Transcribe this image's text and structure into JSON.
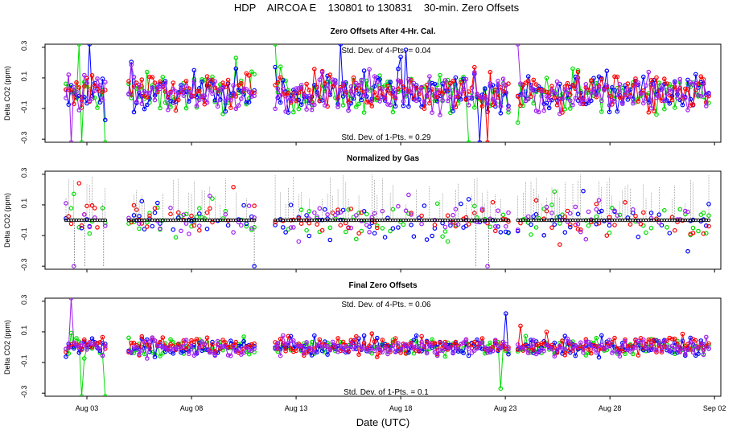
{
  "page_title": "HDP    AIRCOA E    130801 to 130831    30-min. Zero Offsets",
  "colors": {
    "series": [
      "#00dd00",
      "#0000ff",
      "#ff0000",
      "#a020f0"
    ],
    "normalized_marker": "#000000",
    "frame": "#000000"
  },
  "x_axis": {
    "label": "Date (UTC)",
    "ticks": [
      {
        "day": 3,
        "label": "Aug 03"
      },
      {
        "day": 8,
        "label": "Aug 08"
      },
      {
        "day": 13,
        "label": "Aug 13"
      },
      {
        "day": 18,
        "label": "Aug 18"
      },
      {
        "day": 23,
        "label": "Aug 23"
      },
      {
        "day": 28,
        "label": "Aug 28"
      },
      {
        "day": 33,
        "label": "Sep 02"
      }
    ],
    "range_days": [
      1,
      33.3
    ]
  },
  "chart_data": [
    {
      "type": "scatter",
      "title": "Zero Offsets After 4-Hr. Cal.",
      "ylabel": "Delta CO2 (ppm)",
      "ylim": [
        -0.32,
        0.32
      ],
      "yticks": [
        -0.3,
        -0.1,
        0.1,
        0.3
      ],
      "yticklabels": [
        "-0.3",
        "-0.1",
        "0.1",
        "0.3"
      ],
      "annotations": {
        "top": "Std. Dev. of 4-Pts. = 0.04",
        "bottom": "Std. Dev. of 1-Pts. = 0.29"
      },
      "series_spread": 0.11,
      "flat_level": null,
      "spikes": [
        {
          "day": 2.2,
          "value": -0.32
        },
        {
          "day": 2.6,
          "value": 0.32
        },
        {
          "day": 2.8,
          "value": -0.32
        },
        {
          "day": 3.1,
          "value": 0.32
        },
        {
          "day": 3.9,
          "value": -0.32
        },
        {
          "day": 4.0,
          "value": 0.32
        },
        {
          "day": 11.2,
          "value": 0.32
        },
        {
          "day": 11.5,
          "value": 0.32
        },
        {
          "day": 12.0,
          "value": 0.32
        },
        {
          "day": 15.1,
          "value": 0.32
        },
        {
          "day": 21.2,
          "value": -0.32
        },
        {
          "day": 21.8,
          "value": -0.32
        },
        {
          "day": 22.1,
          "value": -0.32
        },
        {
          "day": 23.6,
          "value": 0.32
        }
      ]
    },
    {
      "type": "scatter",
      "title": "Normalized by Gas",
      "ylabel": "Delta CO2 (ppm)",
      "ylim": [
        -0.32,
        0.32
      ],
      "yticks": [
        -0.3,
        -0.1,
        0.1,
        0.3
      ],
      "yticklabels": [
        "-0.3",
        "-0.1",
        "0.1",
        "0.3"
      ],
      "annotations": {
        "top": "",
        "bottom": ""
      },
      "series_spread": 0.1,
      "flat_level": 0.0,
      "spikes": [
        {
          "day": 2.4,
          "value": -0.3
        },
        {
          "day": 2.9,
          "value": -0.3
        },
        {
          "day": 3.8,
          "value": -0.3
        },
        {
          "day": 11.0,
          "value": -0.3
        },
        {
          "day": 21.6,
          "value": -0.3
        },
        {
          "day": 22.2,
          "value": -0.3
        }
      ]
    },
    {
      "type": "scatter",
      "title": "Final Zero Offsets",
      "ylabel": "Delta CO2 (ppm)",
      "ylim": [
        -0.32,
        0.32
      ],
      "yticks": [
        -0.3,
        -0.1,
        0.1,
        0.3
      ],
      "yticklabels": [
        "-0.3",
        "-0.1",
        "0.1",
        "0.3"
      ],
      "annotations": {
        "top": "Std. Dev. of 4-Pts. = 0.06",
        "bottom": "Std. Dev. of 1-Pts. = 0.1"
      },
      "series_spread": 0.05,
      "flat_level": null,
      "spikes": [
        {
          "day": 2.3,
          "value": 0.32
        },
        {
          "day": 2.8,
          "value": -0.32
        },
        {
          "day": 3.9,
          "value": -0.32
        },
        {
          "day": 4.2,
          "value": 0.32
        },
        {
          "day": 11.8,
          "value": 0.32
        },
        {
          "day": 22.8,
          "value": -0.27
        },
        {
          "day": 23.0,
          "value": 0.22
        },
        {
          "day": 23.4,
          "value": -0.2
        }
      ]
    }
  ],
  "data_segments": [
    [
      2.0,
      3.9
    ],
    [
      5.0,
      11.1
    ],
    [
      12.0,
      21.3
    ],
    [
      21.4,
      23.2
    ],
    [
      23.6,
      32.8
    ]
  ]
}
